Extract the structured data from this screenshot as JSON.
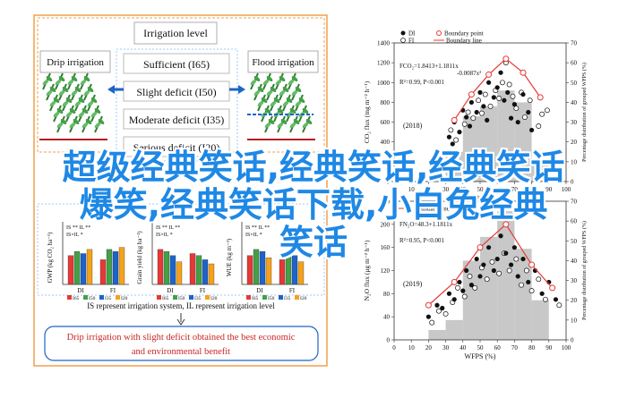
{
  "overlay": {
    "line1": "超级经典笑话,经典笑话,经典笑话",
    "line2": "爆笑,经典笑话下载,小白兔经典",
    "line3": "笑话"
  },
  "left_panel": {
    "irrigation_level_title": "Irrigation level",
    "drip_title": "Drip irrigation",
    "flood_title": "Flood irrigation",
    "levels": [
      "Sufficient (I65)",
      "Slight deficit (I50)",
      "Moderate deficit (I35)",
      "Serious deficit (I20)"
    ],
    "legend_note": "IS represent irrigation system, IL represent irrigation level",
    "conclusion_line1": "Drip irrigation with slight deficit obtained the best economic",
    "conclusion_line2": "and environmental benefit",
    "gwp_label": "GWP (kg CO₂ ha⁻¹)",
    "grain_label": "Grain yield (kg ha⁻¹)",
    "wue_label": "WUE (kg m⁻³)",
    "sig_is": "IS **",
    "sig_il": "IL **",
    "sig_isil": "IS×IL *",
    "groups": [
      "DI",
      "FI"
    ],
    "bar_legend": [
      "I65",
      "I50",
      "I35",
      "I20"
    ]
  },
  "colors": {
    "i65": "#e53935",
    "i50": "#43a047",
    "i35": "#1e63c8",
    "i20": "#f4a21b",
    "hist": "#c8c8c8",
    "accent": "#1e88e5",
    "border_orange": "#f0a04b"
  },
  "chart_data": [
    {
      "type": "scatter",
      "title": "",
      "year_label": "(2018)",
      "ylabel": "CO₂ flux (mg m⁻² h⁻¹)",
      "xlabel": "WFPS (%)",
      "y2label": "Percentage distribution of grouped WFPS (%)",
      "ylim": [
        0,
        1400
      ],
      "y2lim": [
        0,
        70
      ],
      "xlim": [
        0,
        100
      ],
      "legend": [
        "DI",
        "FI",
        "Boundary point",
        "Boundary line"
      ],
      "equation": "FCO₂=1.8413+1.1811x",
      "equation2": "-0.0087x²",
      "stats": "R²=0.99, P<0.001",
      "histogram": {
        "bins": [
          30,
          40,
          50,
          60,
          70,
          80
        ],
        "percent": [
          15,
          33,
          38,
          46,
          40,
          10
        ]
      },
      "boundary_x": [
        32,
        40,
        48,
        55,
        62,
        68,
        75,
        82,
        90
      ],
      "di_points": [
        [
          32,
          450
        ],
        [
          35,
          600
        ],
        [
          38,
          500
        ],
        [
          40,
          720
        ],
        [
          42,
          650
        ],
        [
          45,
          800
        ],
        [
          48,
          700
        ],
        [
          50,
          900
        ],
        [
          52,
          760
        ],
        [
          55,
          1000
        ],
        [
          58,
          850
        ],
        [
          60,
          950
        ],
        [
          62,
          1100
        ],
        [
          64,
          820
        ],
        [
          66,
          900
        ],
        [
          70,
          780
        ],
        [
          72,
          600
        ],
        [
          75,
          880
        ],
        [
          78,
          700
        ],
        [
          80,
          520
        ],
        [
          34,
          380
        ],
        [
          44,
          560
        ],
        [
          54,
          620
        ],
        [
          68,
          640
        ]
      ],
      "fi_points": [
        [
          33,
          520
        ],
        [
          36,
          420
        ],
        [
          41,
          580
        ],
        [
          43,
          700
        ],
        [
          46,
          640
        ],
        [
          49,
          820
        ],
        [
          51,
          690
        ],
        [
          53,
          880
        ],
        [
          56,
          760
        ],
        [
          59,
          920
        ],
        [
          61,
          840
        ],
        [
          63,
          1000
        ],
        [
          65,
          1200
        ],
        [
          67,
          980
        ],
        [
          69,
          860
        ],
        [
          71,
          740
        ],
        [
          74,
          900
        ],
        [
          76,
          650
        ],
        [
          79,
          820
        ],
        [
          84,
          560
        ],
        [
          86,
          680
        ],
        [
          89,
          720
        ]
      ],
      "boundary_points": [
        [
          35,
          620
        ],
        [
          45,
          880
        ],
        [
          55,
          1080
        ],
        [
          65,
          1240
        ],
        [
          75,
          1100
        ],
        [
          85,
          850
        ]
      ]
    },
    {
      "type": "scatter",
      "title": "",
      "year_label": "(2019)",
      "ylabel": "N₂O flux (μg m⁻² h⁻¹)",
      "xlabel": "WFPS (%)",
      "y2label": "Percentage distribution of grouped WFPS (%)",
      "ylim": [
        0,
        240
      ],
      "y2lim": [
        0,
        70
      ],
      "xlim": [
        0,
        100
      ],
      "legend": [
        "Boundary line"
      ],
      "equation": "FN₂O=48.3+1.1811x",
      "equation2": "",
      "stats": "R²=0.95, P<0.001",
      "histogram": {
        "bins": [
          20,
          30,
          40,
          50,
          60,
          70,
          80
        ],
        "percent": [
          5,
          10,
          40,
          52,
          65,
          46,
          20
        ]
      },
      "boundary_x": [
        15,
        25,
        35,
        45,
        55,
        65,
        75,
        85,
        95
      ],
      "di_points": [
        [
          20,
          40
        ],
        [
          25,
          60
        ],
        [
          28,
          55
        ],
        [
          32,
          80
        ],
        [
          35,
          70
        ],
        [
          38,
          100
        ],
        [
          40,
          85
        ],
        [
          42,
          120
        ],
        [
          45,
          95
        ],
        [
          48,
          140
        ],
        [
          50,
          110
        ],
        [
          52,
          130
        ],
        [
          55,
          160
        ],
        [
          58,
          120
        ],
        [
          60,
          140
        ],
        [
          62,
          180
        ],
        [
          65,
          150
        ],
        [
          68,
          130
        ],
        [
          70,
          160
        ],
        [
          72,
          110
        ],
        [
          75,
          140
        ],
        [
          78,
          100
        ],
        [
          82,
          120
        ],
        [
          86,
          80
        ],
        [
          90,
          100
        ],
        [
          94,
          70
        ]
      ],
      "fi_points": [
        [
          22,
          30
        ],
        [
          26,
          50
        ],
        [
          30,
          45
        ],
        [
          34,
          65
        ],
        [
          37,
          90
        ],
        [
          41,
          75
        ],
        [
          44,
          110
        ],
        [
          47,
          90
        ],
        [
          51,
          125
        ],
        [
          54,
          105
        ],
        [
          57,
          135
        ],
        [
          61,
          115
        ],
        [
          64,
          150
        ],
        [
          67,
          120
        ],
        [
          71,
          140
        ],
        [
          74,
          95
        ],
        [
          77,
          120
        ],
        [
          80,
          85
        ],
        [
          84,
          105
        ],
        [
          88,
          70
        ],
        [
          92,
          90
        ],
        [
          96,
          60
        ]
      ],
      "boundary_points": [
        [
          20,
          60
        ],
        [
          35,
          100
        ],
        [
          50,
          160
        ],
        [
          65,
          200
        ],
        [
          80,
          130
        ],
        [
          92,
          90
        ]
      ]
    }
  ]
}
